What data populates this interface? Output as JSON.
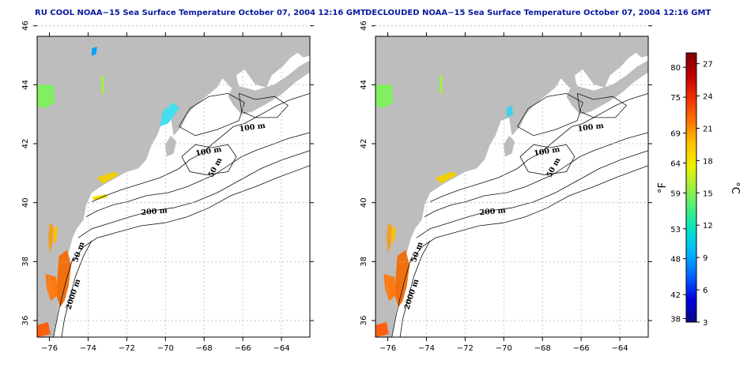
{
  "maps": [
    {
      "title": "RU COOL NOAA−15 Sea Surface Temperature October 07, 2004 12:16 GMT",
      "variant": "raw",
      "x_ticks": [
        "−76",
        "−74",
        "−72",
        "−70",
        "−68",
        "−66",
        "−64"
      ],
      "y_ticks": [
        "36",
        "38",
        "40",
        "42",
        "44",
        "46"
      ],
      "contour_labels": [
        "100 m",
        "100 m",
        "50 m",
        "200 m",
        "50 m",
        "2000 m"
      ]
    },
    {
      "title": "DECLOUDED NOAA−15 Sea Surface Temperature October 07, 2004 12:16 GMT",
      "variant": "declouded",
      "x_ticks": [
        "−76",
        "−74",
        "−72",
        "−70",
        "−68",
        "−66",
        "−64"
      ],
      "y_ticks": [
        "36",
        "38",
        "40",
        "42",
        "44",
        "46"
      ],
      "contour_labels": [
        "100 m",
        "100 m",
        "50 m",
        "200 m",
        "50 m",
        "2000 m"
      ]
    }
  ],
  "colorbar": {
    "f_unit": "°F",
    "c_unit": "°C",
    "f_ticks": [
      "80",
      "75",
      "69",
      "64",
      "59",
      "53",
      "48",
      "42",
      "38"
    ],
    "c_ticks": [
      "27",
      "24",
      "21",
      "18",
      "15",
      "12",
      "9",
      "6",
      "3"
    ],
    "c_range": [
      3,
      28
    ],
    "colors": [
      "#0a0a80",
      "#0000e0",
      "#0060ff",
      "#00b0ff",
      "#00e0d0",
      "#40f080",
      "#a0f040",
      "#f0f000",
      "#ffc000",
      "#ff7000",
      "#f03000",
      "#c00000",
      "#800000"
    ]
  },
  "colors": {
    "land": "#bdbdbd",
    "ocean": "#ffffff",
    "title": "#0a1a9e",
    "grid": "#b8b8b8"
  }
}
